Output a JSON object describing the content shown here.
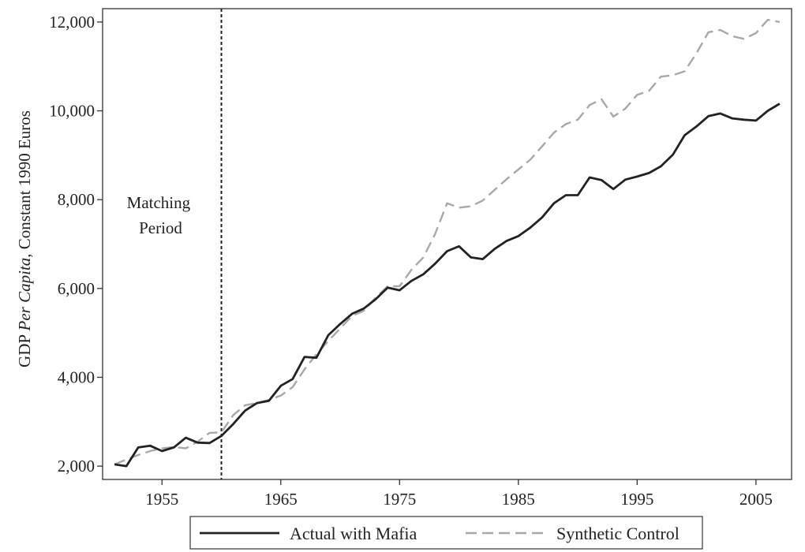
{
  "chart_data": {
    "type": "line",
    "ylabel_parts": [
      "GDP ",
      "Per Capita",
      ", Constant 1990 Euros"
    ],
    "xlim": [
      1950,
      2008
    ],
    "ylim": [
      1700,
      12300
    ],
    "x_ticks": [
      1955,
      1965,
      1975,
      1985,
      1995,
      2005
    ],
    "y_ticks": [
      2000,
      4000,
      6000,
      8000,
      10000,
      12000
    ],
    "y_tick_labels": [
      "2,000",
      "4,000",
      "6,000",
      "8,000",
      "10,000",
      "12,000"
    ],
    "annotation": {
      "lines": [
        "Matching",
        "Period"
      ],
      "x": 1960
    },
    "vline_x": 1960,
    "grid": false,
    "legend_position": "bottom",
    "series": [
      {
        "name": "Actual with Mafia",
        "style": "solid",
        "color": "#222222",
        "x": [
          1951,
          1952,
          1953,
          1954,
          1955,
          1956,
          1957,
          1958,
          1959,
          1960,
          1961,
          1962,
          1963,
          1964,
          1965,
          1966,
          1967,
          1968,
          1969,
          1970,
          1971,
          1972,
          1973,
          1974,
          1975,
          1976,
          1977,
          1978,
          1979,
          1980,
          1981,
          1982,
          1983,
          1984,
          1985,
          1986,
          1987,
          1988,
          1989,
          1990,
          1991,
          1992,
          1993,
          1994,
          1995,
          1996,
          1997,
          1998,
          1999,
          2000,
          2001,
          2002,
          2003,
          2004,
          2005,
          2006,
          2007
        ],
        "values": [
          2040,
          2000,
          2420,
          2460,
          2340,
          2420,
          2640,
          2530,
          2520,
          2680,
          2950,
          3250,
          3420,
          3470,
          3810,
          3960,
          4460,
          4440,
          4950,
          5200,
          5430,
          5550,
          5760,
          6020,
          5960,
          6170,
          6320,
          6560,
          6840,
          6950,
          6700,
          6660,
          6890,
          7070,
          7180,
          7370,
          7600,
          7920,
          8100,
          8100,
          8500,
          8440,
          8240,
          8450,
          8520,
          8600,
          8750,
          9010,
          9450,
          9650,
          9880,
          9940,
          9830,
          9800,
          9780,
          10000,
          10160
        ]
      },
      {
        "name": "Synthetic Control",
        "style": "dashed",
        "color": "#a8a8a8",
        "x": [
          1951,
          1952,
          1953,
          1954,
          1955,
          1956,
          1957,
          1958,
          1959,
          1960,
          1961,
          1962,
          1963,
          1964,
          1965,
          1966,
          1967,
          1968,
          1969,
          1970,
          1971,
          1972,
          1973,
          1974,
          1975,
          1976,
          1977,
          1978,
          1979,
          1980,
          1981,
          1982,
          1983,
          1984,
          1985,
          1986,
          1987,
          1988,
          1989,
          1990,
          1991,
          1992,
          1993,
          1994,
          1995,
          1996,
          1997,
          1998,
          1999,
          2000,
          2001,
          2002,
          2003,
          2004,
          2005,
          2006,
          2007
        ],
        "values": [
          2040,
          2150,
          2250,
          2340,
          2400,
          2430,
          2400,
          2550,
          2750,
          2760,
          3150,
          3370,
          3420,
          3490,
          3590,
          3780,
          4180,
          4520,
          4820,
          5100,
          5380,
          5500,
          5800,
          6050,
          6050,
          6420,
          6700,
          7230,
          7920,
          7820,
          7850,
          7980,
          8220,
          8460,
          8680,
          8900,
          9200,
          9510,
          9700,
          9800,
          10130,
          10260,
          9870,
          10050,
          10360,
          10450,
          10770,
          10800,
          10890,
          11300,
          11770,
          11820,
          11680,
          11620,
          11750,
          12050,
          12000
        ]
      }
    ]
  }
}
